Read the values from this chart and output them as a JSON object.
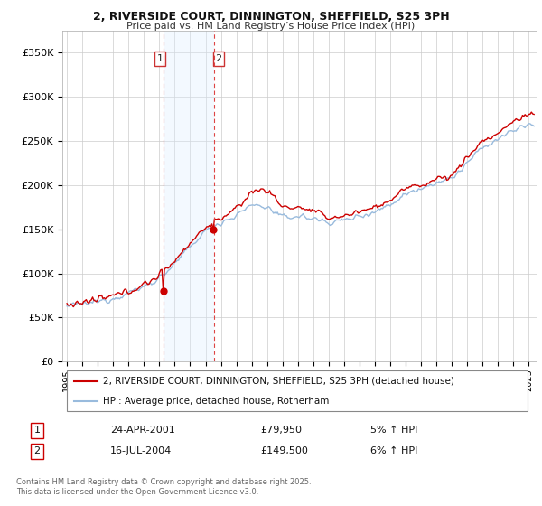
{
  "title_line1": "2, RIVERSIDE COURT, DINNINGTON, SHEFFIELD, S25 3PH",
  "title_line2": "Price paid vs. HM Land Registry’s House Price Index (HPI)",
  "background_color": "#ffffff",
  "plot_bg_color": "#ffffff",
  "grid_color": "#cccccc",
  "line1_color": "#cc0000",
  "line2_color": "#99bbdd",
  "span_color": "#ddeeff",
  "transaction1": {
    "label": "1",
    "date": "24-APR-2001",
    "price": 79950,
    "year": 2001.29,
    "hpi_change": "5% ↑ HPI"
  },
  "transaction2": {
    "label": "2",
    "date": "16-JUL-2004",
    "price": 149500,
    "year": 2004.54,
    "hpi_change": "6% ↑ HPI"
  },
  "legend_line1": "2, RIVERSIDE COURT, DINNINGTON, SHEFFIELD, S25 3PH (detached house)",
  "legend_line2": "HPI: Average price, detached house, Rotherham",
  "footer": "Contains HM Land Registry data © Crown copyright and database right 2025.\nThis data is licensed under the Open Government Licence v3.0.",
  "yticks": [
    0,
    50000,
    100000,
    150000,
    200000,
    250000,
    300000,
    350000
  ],
  "ylim": [
    0,
    375000
  ],
  "xlim_left": 1994.7,
  "xlim_right": 2025.5
}
